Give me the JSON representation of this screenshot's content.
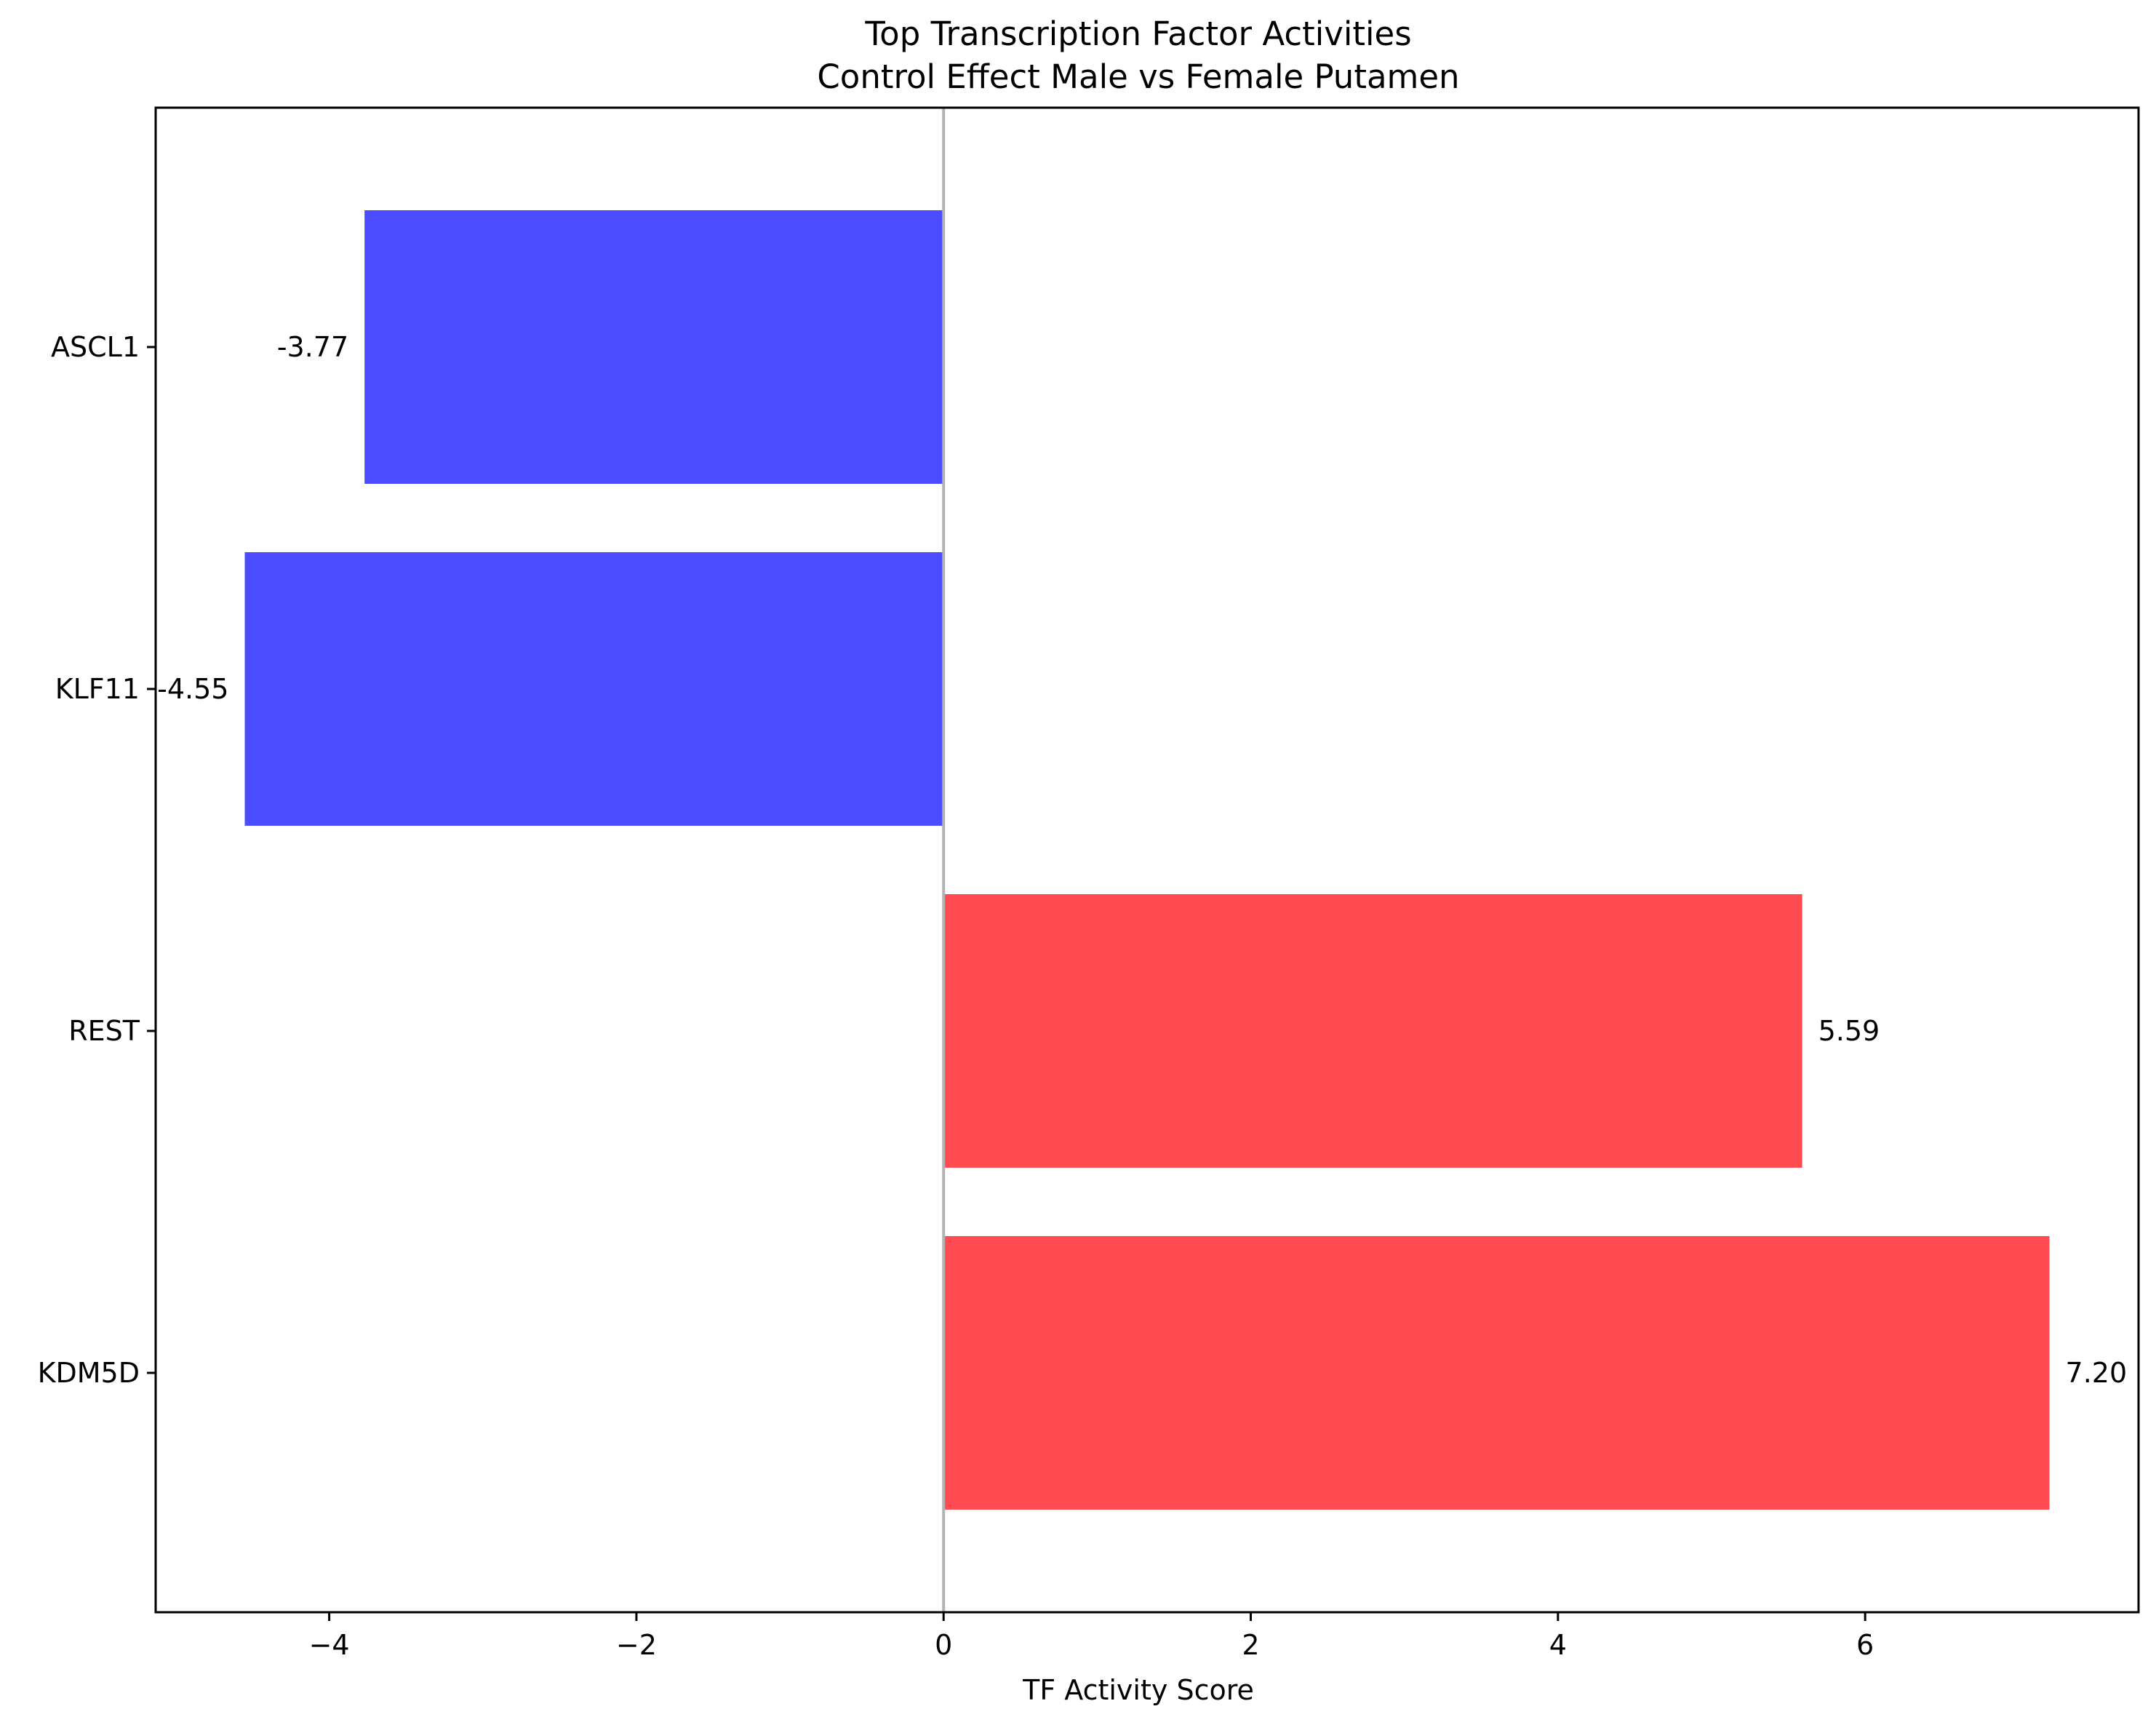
{
  "chart_data": {
    "type": "bar",
    "orientation": "horizontal",
    "title": "Top Transcription Factor Activities",
    "subtitle": "Control Effect Male vs Female Putamen",
    "xlabel": "TF Activity Score",
    "ylabel": "",
    "categories": [
      "ASCL1",
      "KLF11",
      "REST",
      "KDM5D"
    ],
    "values": [
      -3.77,
      -4.55,
      5.59,
      7.2
    ],
    "value_labels": [
      "-3.77",
      "-4.55",
      "5.59",
      "7.20"
    ],
    "xlim": [
      -5.13,
      7.78
    ],
    "xticks": [
      -4,
      -2,
      0,
      2,
      4,
      6
    ],
    "xtick_labels": [
      "−4",
      "−2",
      "0",
      "2",
      "4",
      "6"
    ],
    "grid": false,
    "zero_line": true,
    "colors": {
      "negative": "#4b4bff",
      "positive": "#ff4b4f",
      "zero_line": "#b3b3b3",
      "axes": "#000000"
    }
  }
}
